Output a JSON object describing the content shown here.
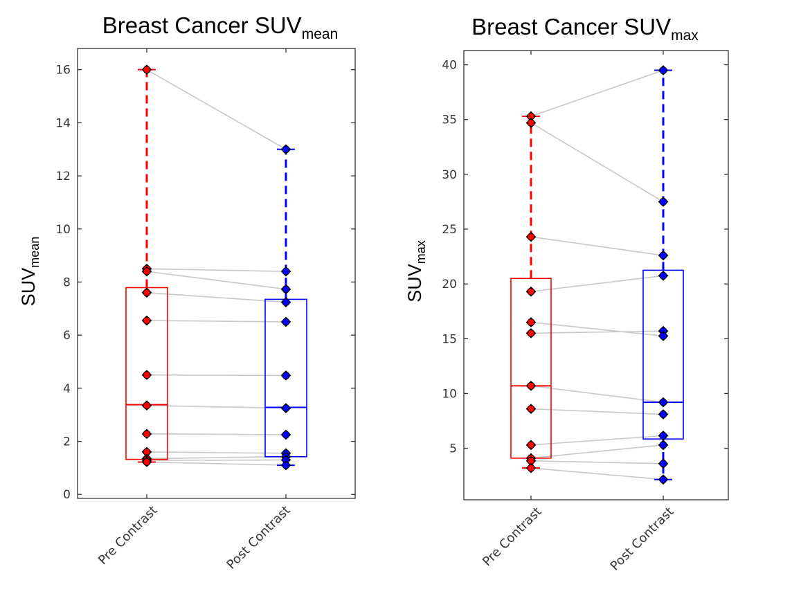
{
  "chart_data": [
    {
      "type": "boxplot",
      "title": "Breast Cancer SUV",
      "title_subscript": "mean",
      "xlabel": "",
      "ylabel": "SUV",
      "ylabel_subscript": "mean",
      "ylim": [
        -0.15,
        16.8
      ],
      "yticks": [
        0,
        2,
        4,
        6,
        8,
        10,
        12,
        14,
        16
      ],
      "categories": [
        "Pre Contrast",
        "Post Contrast"
      ],
      "grid": false,
      "series": [
        {
          "name": "Pre Contrast",
          "color": "#ff0000",
          "values": [
            16.0,
            8.5,
            8.4,
            7.6,
            6.55,
            4.5,
            3.35,
            2.28,
            1.6,
            1.35,
            1.28,
            1.22
          ],
          "box": {
            "whisker_low": 1.22,
            "q1": 1.32,
            "median": 3.38,
            "q3": 7.79,
            "whisker_high": 16.0
          }
        },
        {
          "name": "Post Contrast",
          "color": "#0000ff",
          "values": [
            13.0,
            8.4,
            7.73,
            7.24,
            6.5,
            4.48,
            3.25,
            2.25,
            1.55,
            1.42,
            1.3,
            1.1
          ],
          "box": {
            "whisker_low": 1.1,
            "q1": 1.42,
            "median": 3.28,
            "q3": 7.35,
            "whisker_high": 13.0
          }
        }
      ],
      "pairs": [
        [
          16.0,
          13.0
        ],
        [
          8.5,
          8.4
        ],
        [
          8.4,
          7.73
        ],
        [
          7.6,
          7.24
        ],
        [
          6.55,
          6.5
        ],
        [
          4.5,
          4.48
        ],
        [
          3.35,
          3.25
        ],
        [
          2.28,
          2.25
        ],
        [
          1.6,
          1.55
        ],
        [
          1.35,
          1.42
        ],
        [
          1.28,
          1.3
        ],
        [
          1.22,
          1.1
        ]
      ]
    },
    {
      "type": "boxplot",
      "title": "Breast Cancer SUV",
      "title_subscript": "max",
      "xlabel": "",
      "ylabel": "SUV",
      "ylabel_subscript": "max",
      "ylim": [
        0.3,
        41.3
      ],
      "yticks": [
        5,
        10,
        15,
        20,
        25,
        30,
        35,
        40
      ],
      "categories": [
        "Pre Contrast",
        "Post Contrast"
      ],
      "grid": false,
      "series": [
        {
          "name": "Pre Contrast",
          "color": "#ff0000",
          "values": [
            35.3,
            34.7,
            24.3,
            19.3,
            16.5,
            15.5,
            10.7,
            8.6,
            5.3,
            4.1,
            3.85,
            3.2
          ],
          "box": {
            "whisker_low": 3.2,
            "q1": 4.1,
            "median": 10.7,
            "q3": 20.5,
            "whisker_high": 35.3
          }
        },
        {
          "name": "Post Contrast",
          "color": "#0000ff",
          "values": [
            39.5,
            27.5,
            22.6,
            20.75,
            15.7,
            15.25,
            9.2,
            8.1,
            6.15,
            5.3,
            3.6,
            2.15
          ],
          "box": {
            "whisker_low": 2.15,
            "q1": 5.85,
            "median": 9.2,
            "q3": 21.25,
            "whisker_high": 39.5
          }
        }
      ],
      "pairs": [
        [
          35.3,
          39.5
        ],
        [
          34.7,
          27.5
        ],
        [
          24.3,
          22.6
        ],
        [
          19.3,
          20.75
        ],
        [
          16.5,
          15.25
        ],
        [
          15.5,
          15.7
        ],
        [
          10.7,
          9.2
        ],
        [
          8.6,
          8.1
        ],
        [
          5.3,
          6.15
        ],
        [
          4.1,
          5.3
        ],
        [
          3.85,
          3.6
        ],
        [
          3.2,
          2.15
        ]
      ]
    }
  ]
}
